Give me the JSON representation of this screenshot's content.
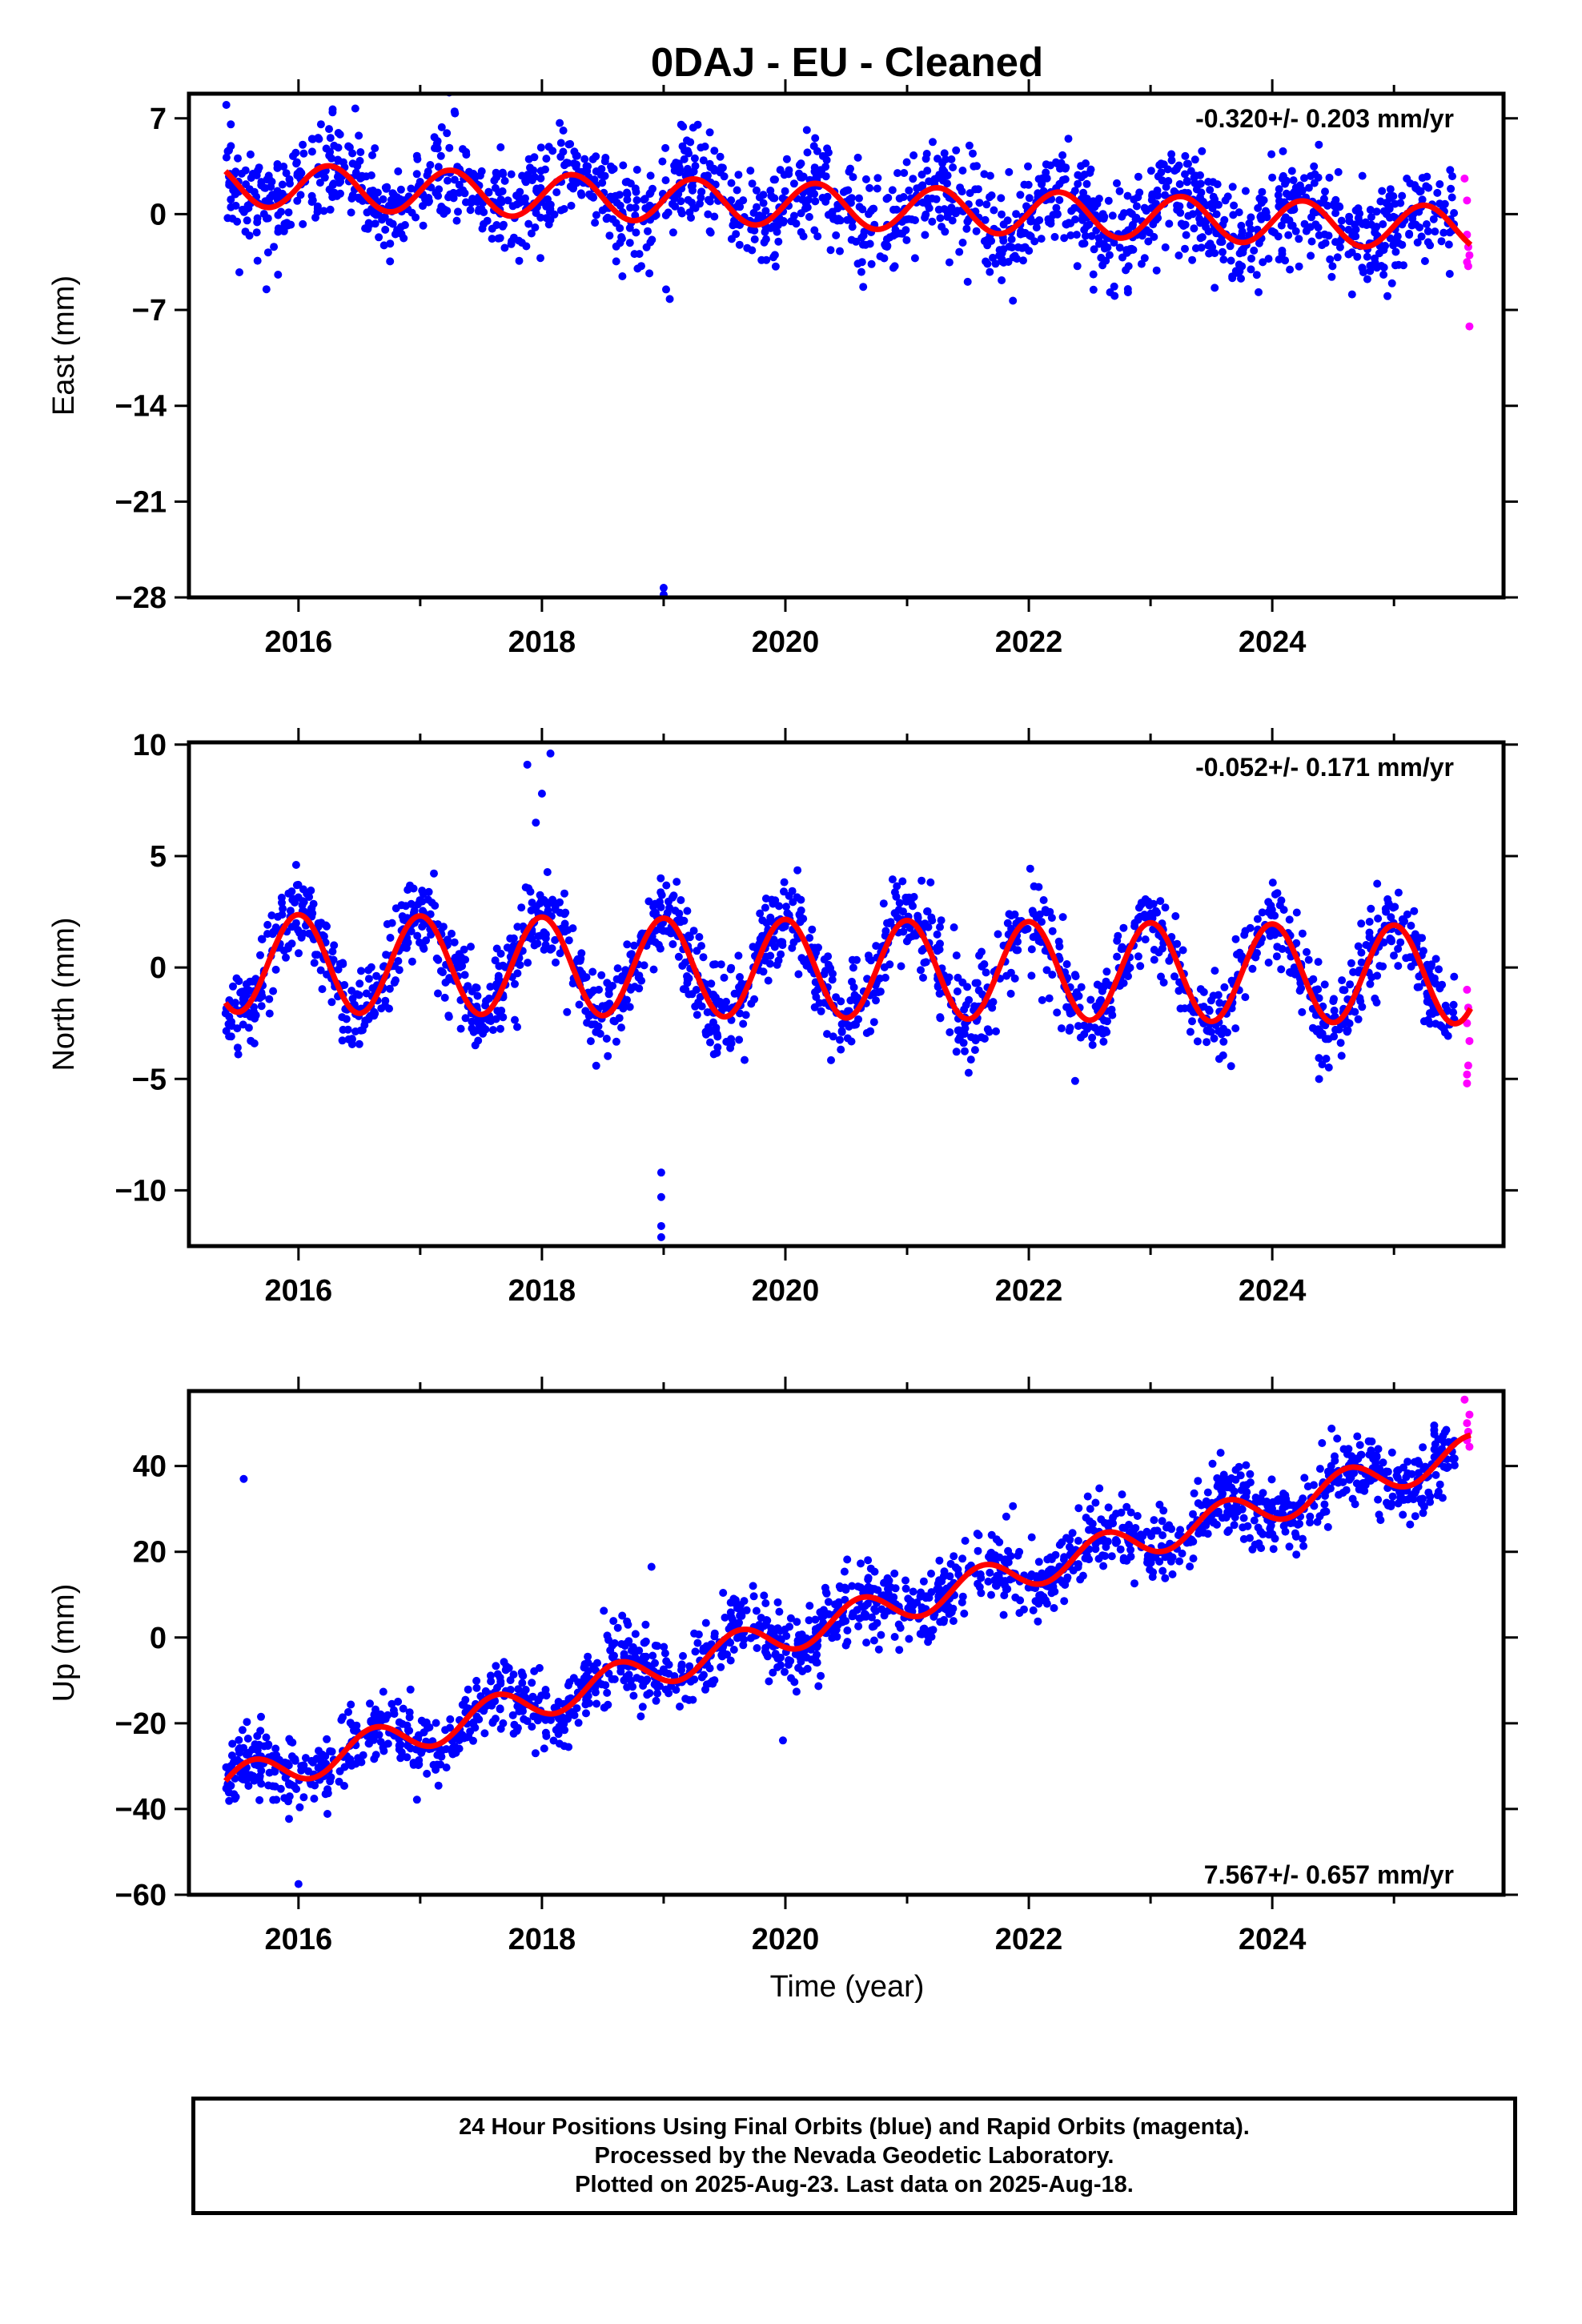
{
  "title": "0DAJ  - EU - Cleaned",
  "x_axis_label": "Time (year)",
  "footer": {
    "line1": "24 Hour Positions Using Final Orbits (blue) and Rapid Orbits (magenta).",
    "line2": "Processed by the Nevada Geodetic Laboratory.",
    "line3": "Plotted on 2025-Aug-23. Last data on 2025-Aug-18."
  },
  "colors": {
    "final_orbits": "#0000ff",
    "rapid_orbits": "#ff00ff",
    "model_fit": "#ff0000",
    "frame": "#000000"
  },
  "chart_data": [
    {
      "type": "scatter",
      "ylabel": "East (mm)",
      "rate_label": "-0.320+/- 0.203 mm/yr",
      "rate_position": "top-right",
      "xlim": [
        2015.1,
        2025.9
      ],
      "ylim": [
        -28,
        8.8
      ],
      "xticks": [
        2016,
        2018,
        2020,
        2022,
        2024
      ],
      "yticks": [
        7,
        0,
        -7,
        -14,
        -21,
        -28
      ],
      "ytick_labels": [
        "7",
        "0",
        "−7",
        "−14",
        "−21",
        "−28"
      ],
      "series": [
        {
          "type": "scatter",
          "color": "#0000ff",
          "x_start": 2015.4,
          "x_end": 2025.5,
          "model": {
            "offset": 2.2,
            "rate": -0.32,
            "amplitude": 1.6,
            "peak_phase": 0.25
          },
          "scatter_sd": 1.8,
          "outliers": [
            {
              "x": 2019.0,
              "y": -27.3
            },
            {
              "x": 2019.0,
              "y": -27.8
            },
            {
              "x": 2019.05,
              "y": -6.2
            },
            {
              "x": 2019.02,
              "y": -5.5
            }
          ]
        },
        {
          "type": "scatter",
          "color": "#ff00ff",
          "x_start": 2025.5,
          "x_end": 2025.63,
          "points": [
            {
              "x": 2025.58,
              "y": 2.6
            },
            {
              "x": 2025.6,
              "y": 1.0
            },
            {
              "x": 2025.6,
              "y": -1.5
            },
            {
              "x": 2025.61,
              "y": -2.4
            },
            {
              "x": 2025.62,
              "y": -3.0
            },
            {
              "x": 2025.6,
              "y": -3.5
            },
            {
              "x": 2025.61,
              "y": -3.8
            },
            {
              "x": 2025.62,
              "y": -8.2
            }
          ]
        },
        {
          "type": "line",
          "color": "#ff0000",
          "x_start": 2015.4,
          "x_end": 2025.63
        }
      ]
    },
    {
      "type": "scatter",
      "ylabel": "North (mm)",
      "rate_label": "-0.052+/- 0.171 mm/yr",
      "rate_position": "top-right",
      "xlim": [
        2015.1,
        2025.9
      ],
      "ylim": [
        -12.5,
        10.1
      ],
      "xticks": [
        2016,
        2018,
        2020,
        2022,
        2024
      ],
      "yticks": [
        10,
        5,
        0,
        -5,
        -10
      ],
      "ytick_labels": [
        "10",
        "5",
        "0",
        "−5",
        "−10"
      ],
      "series": [
        {
          "type": "scatter",
          "color": "#0000ff",
          "x_start": 2015.4,
          "x_end": 2025.5,
          "model": {
            "offset": 0.2,
            "rate": -0.052,
            "amplitude": 2.2,
            "peak_phase": 0.0
          },
          "scatter_sd": 1.0,
          "outliers": [
            {
              "x": 2017.88,
              "y": 9.1
            },
            {
              "x": 2018.07,
              "y": 9.6
            },
            {
              "x": 2018.0,
              "y": 7.8
            },
            {
              "x": 2017.95,
              "y": 6.5
            },
            {
              "x": 2018.98,
              "y": -9.2
            },
            {
              "x": 2018.98,
              "y": -10.3
            },
            {
              "x": 2018.98,
              "y": -11.6
            },
            {
              "x": 2018.98,
              "y": -12.1
            }
          ]
        },
        {
          "type": "scatter",
          "color": "#ff00ff",
          "x_start": 2025.5,
          "x_end": 2025.63,
          "points": [
            {
              "x": 2025.6,
              "y": -1.0
            },
            {
              "x": 2025.61,
              "y": -1.8
            },
            {
              "x": 2025.6,
              "y": -2.5
            },
            {
              "x": 2025.62,
              "y": -3.3
            },
            {
              "x": 2025.61,
              "y": -4.4
            },
            {
              "x": 2025.6,
              "y": -4.8
            },
            {
              "x": 2025.6,
              "y": -5.2
            }
          ]
        },
        {
          "type": "line",
          "color": "#ff0000",
          "x_start": 2015.4,
          "x_end": 2025.63
        }
      ]
    },
    {
      "type": "scatter",
      "ylabel": "Up (mm)",
      "rate_label": "7.567+/- 0.657 mm/yr",
      "rate_position": "bottom-right",
      "xlim": [
        2015.1,
        2025.9
      ],
      "ylim": [
        -60,
        57.5
      ],
      "xticks": [
        2016,
        2018,
        2020,
        2022,
        2024
      ],
      "yticks": [
        40,
        20,
        0,
        -20,
        -40,
        -60
      ],
      "ytick_labels": [
        "40",
        "20",
        "0",
        "−20",
        "−40",
        "−60"
      ],
      "series": [
        {
          "type": "scatter",
          "color": "#0000ff",
          "x_start": 2015.4,
          "x_end": 2025.5,
          "model": {
            "offset": -34.2,
            "rate": 7.567,
            "amplitude": 4.0,
            "peak_phase": 0.62
          },
          "scatter_sd": 4.2,
          "outliers": [
            {
              "x": 2015.55,
              "y": 37.0
            },
            {
              "x": 2016.0,
              "y": -57.5
            },
            {
              "x": 2019.98,
              "y": -24.0
            },
            {
              "x": 2018.9,
              "y": 16.5
            }
          ]
        },
        {
          "type": "scatter",
          "color": "#ff00ff",
          "x_start": 2025.5,
          "x_end": 2025.63,
          "points": [
            {
              "x": 2025.58,
              "y": 55.5
            },
            {
              "x": 2025.62,
              "y": 52.0
            },
            {
              "x": 2025.6,
              "y": 50.0
            },
            {
              "x": 2025.61,
              "y": 48.0
            },
            {
              "x": 2025.6,
              "y": 46.0
            },
            {
              "x": 2025.62,
              "y": 44.5
            }
          ]
        },
        {
          "type": "line",
          "color": "#ff0000",
          "x_start": 2015.4,
          "x_end": 2025.63
        }
      ]
    }
  ]
}
